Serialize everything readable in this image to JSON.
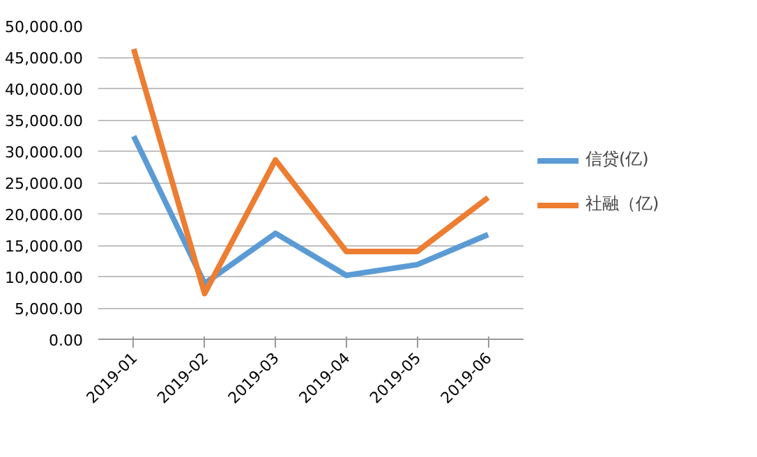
{
  "chart_data": {
    "type": "line",
    "categories": [
      "2019-01",
      "2019-02",
      "2019-03",
      "2019-04",
      "2019-05",
      "2019-06"
    ],
    "series": [
      {
        "name": "信贷(亿)",
        "color": "#5b9bd5",
        "values": [
          32400,
          8900,
          16900,
          10200,
          11900,
          16700
        ]
      },
      {
        "name": "社融（亿)",
        "color": "#ed7d31",
        "values": [
          46300,
          7300,
          28600,
          14000,
          14000,
          22600
        ]
      }
    ],
    "ylim": [
      0,
      50000
    ],
    "yticks": [
      {
        "value": 0,
        "label": "0.00"
      },
      {
        "value": 5000,
        "label": "5,000.00"
      },
      {
        "value": 10000,
        "label": "10,000.00"
      },
      {
        "value": 15000,
        "label": "15,000.00"
      },
      {
        "value": 20000,
        "label": "20,000.00"
      },
      {
        "value": 25000,
        "label": "25,000.00"
      },
      {
        "value": 30000,
        "label": "30,000.00"
      },
      {
        "value": 35000,
        "label": "35,000.00"
      },
      {
        "value": 40000,
        "label": "40,000.00"
      },
      {
        "value": 45000,
        "label": "45,000.00"
      },
      {
        "value": 50000,
        "label": "50,000.00"
      }
    ],
    "grid": "y",
    "legend": "right",
    "marker": "none",
    "line_style": "solid"
  }
}
